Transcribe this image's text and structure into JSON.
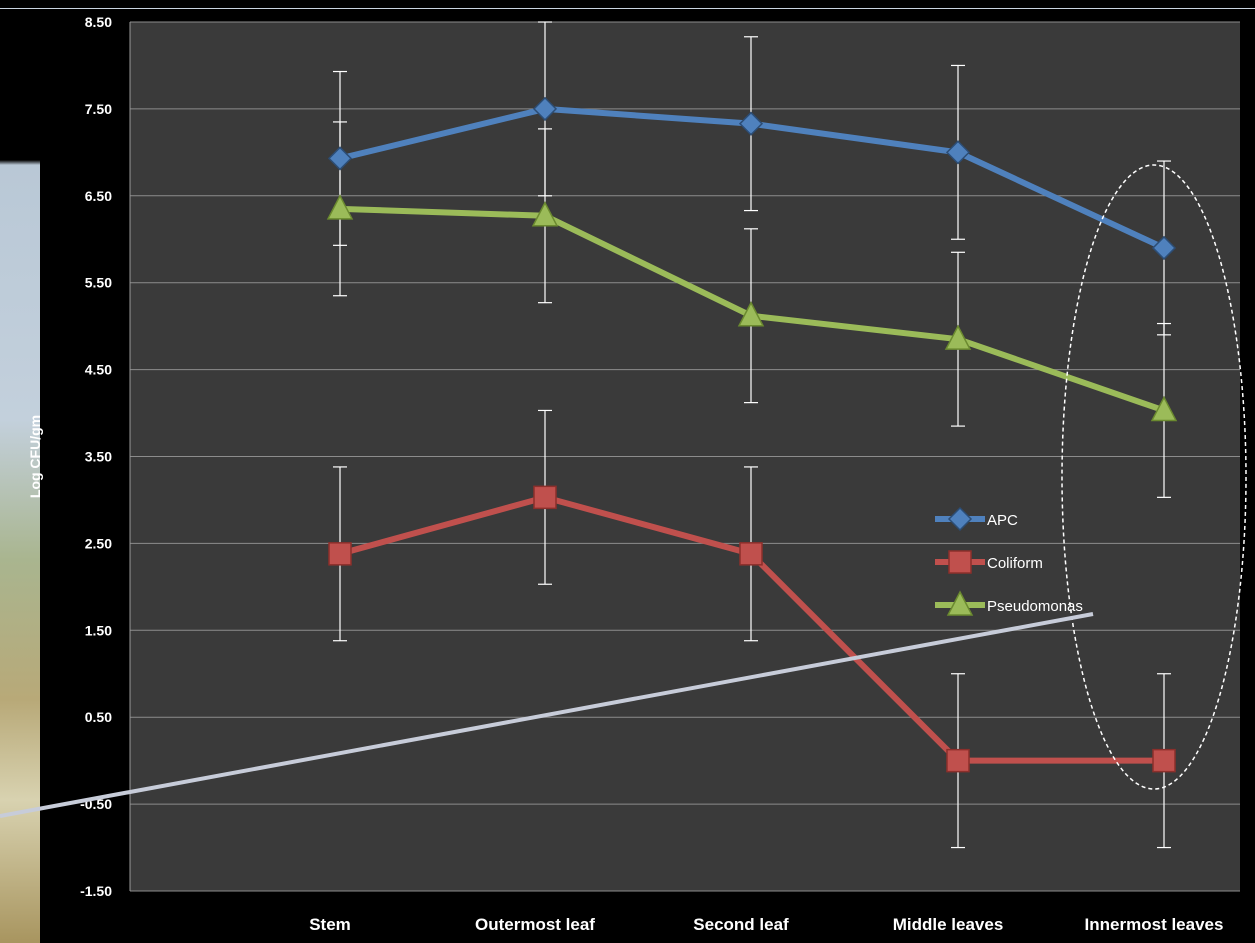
{
  "chart_data": {
    "type": "line",
    "title": "",
    "xlabel": "",
    "ylabel": "Log CFU/gm",
    "ylim": [
      -1.5,
      8.5
    ],
    "y_ticks": [
      "8.50",
      "7.50",
      "6.50",
      "5.50",
      "4.50",
      "3.50",
      "2.50",
      "1.50",
      "0.50",
      "-0.50",
      "-1.50"
    ],
    "y_tick_values": [
      8.5,
      7.5,
      6.5,
      5.5,
      4.5,
      3.5,
      2.5,
      1.5,
      0.5,
      -0.5,
      -1.5
    ],
    "categories": [
      "Stem",
      "Outermost leaf",
      "Second  leaf",
      "Middle leaves",
      "Innermost leaves"
    ],
    "grid": true,
    "legend_position": "center-right",
    "series": [
      {
        "name": "APC",
        "color": "#4f81bd",
        "marker": "diamond",
        "values": [
          6.93,
          7.5,
          7.33,
          7.0,
          5.9
        ],
        "error": [
          1.0,
          1.0,
          1.0,
          1.0,
          1.0
        ]
      },
      {
        "name": "Coliform",
        "color": "#c0504d",
        "marker": "square",
        "values": [
          2.38,
          3.03,
          2.38,
          0.0,
          0.0
        ],
        "error": [
          1.0,
          1.0,
          1.0,
          1.0,
          1.0
        ]
      },
      {
        "name": "Pseudomonas",
        "color": "#9bbb59",
        "marker": "triangle",
        "values": [
          6.35,
          6.27,
          5.12,
          4.85,
          4.03
        ],
        "error": [
          1.0,
          1.0,
          1.0,
          1.0,
          1.0
        ]
      }
    ]
  },
  "style": {
    "plot_background": "#3a3a3a",
    "page_background": "#000000",
    "gridline_color": "#8c8c8c",
    "errorbar_color": "#ffffff",
    "highlight_ellipse_color": "#ffffff",
    "pointer_line_color": "#c7ccd9"
  }
}
